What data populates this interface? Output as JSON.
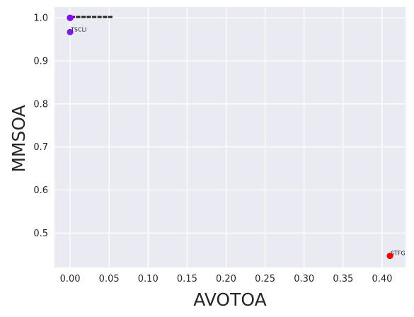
{
  "chart_data": {
    "type": "scatter",
    "title": "",
    "xlabel": "AVOTOA",
    "ylabel": "MMSOA",
    "xlim": [
      -0.02,
      0.43
    ],
    "ylim": [
      0.42,
      1.025
    ],
    "xticks": [
      0.0,
      0.05,
      0.1,
      0.15,
      0.2,
      0.25,
      0.3,
      0.35,
      0.4
    ],
    "xtick_labels": [
      "0.00",
      "0.05",
      "0.10",
      "0.15",
      "0.20",
      "0.25",
      "0.30",
      "0.35",
      "0.40"
    ],
    "yticks": [
      0.5,
      0.6,
      0.7,
      0.8,
      0.9,
      1.0
    ],
    "ytick_labels": [
      "0.5",
      "0.6",
      "0.7",
      "0.8",
      "0.9",
      "1.0"
    ],
    "grid": true,
    "background": "#eaeaf2",
    "grid_color": "#ffffff",
    "points": [
      {
        "x": 0.0,
        "y": 1.0,
        "label": "",
        "color": "#8000ff"
      },
      {
        "x": 0.0,
        "y": 1.0,
        "label": "",
        "color": "#7a0dff"
      },
      {
        "x": 0.0,
        "y": 1.0,
        "label": "",
        "color": "#741aff"
      },
      {
        "x": 0.0,
        "y": 1.0,
        "label": "",
        "color": "#6a28ff"
      },
      {
        "x": 0.0,
        "y": 1.0,
        "label": "",
        "color": "#8a08ff"
      },
      {
        "x": 0.0,
        "y": 0.967,
        "label": "TSCLI",
        "color": "#7c18f4"
      },
      {
        "x": 0.41,
        "y": 0.447,
        "label": "STFG",
        "color": "#ff0000"
      }
    ]
  }
}
